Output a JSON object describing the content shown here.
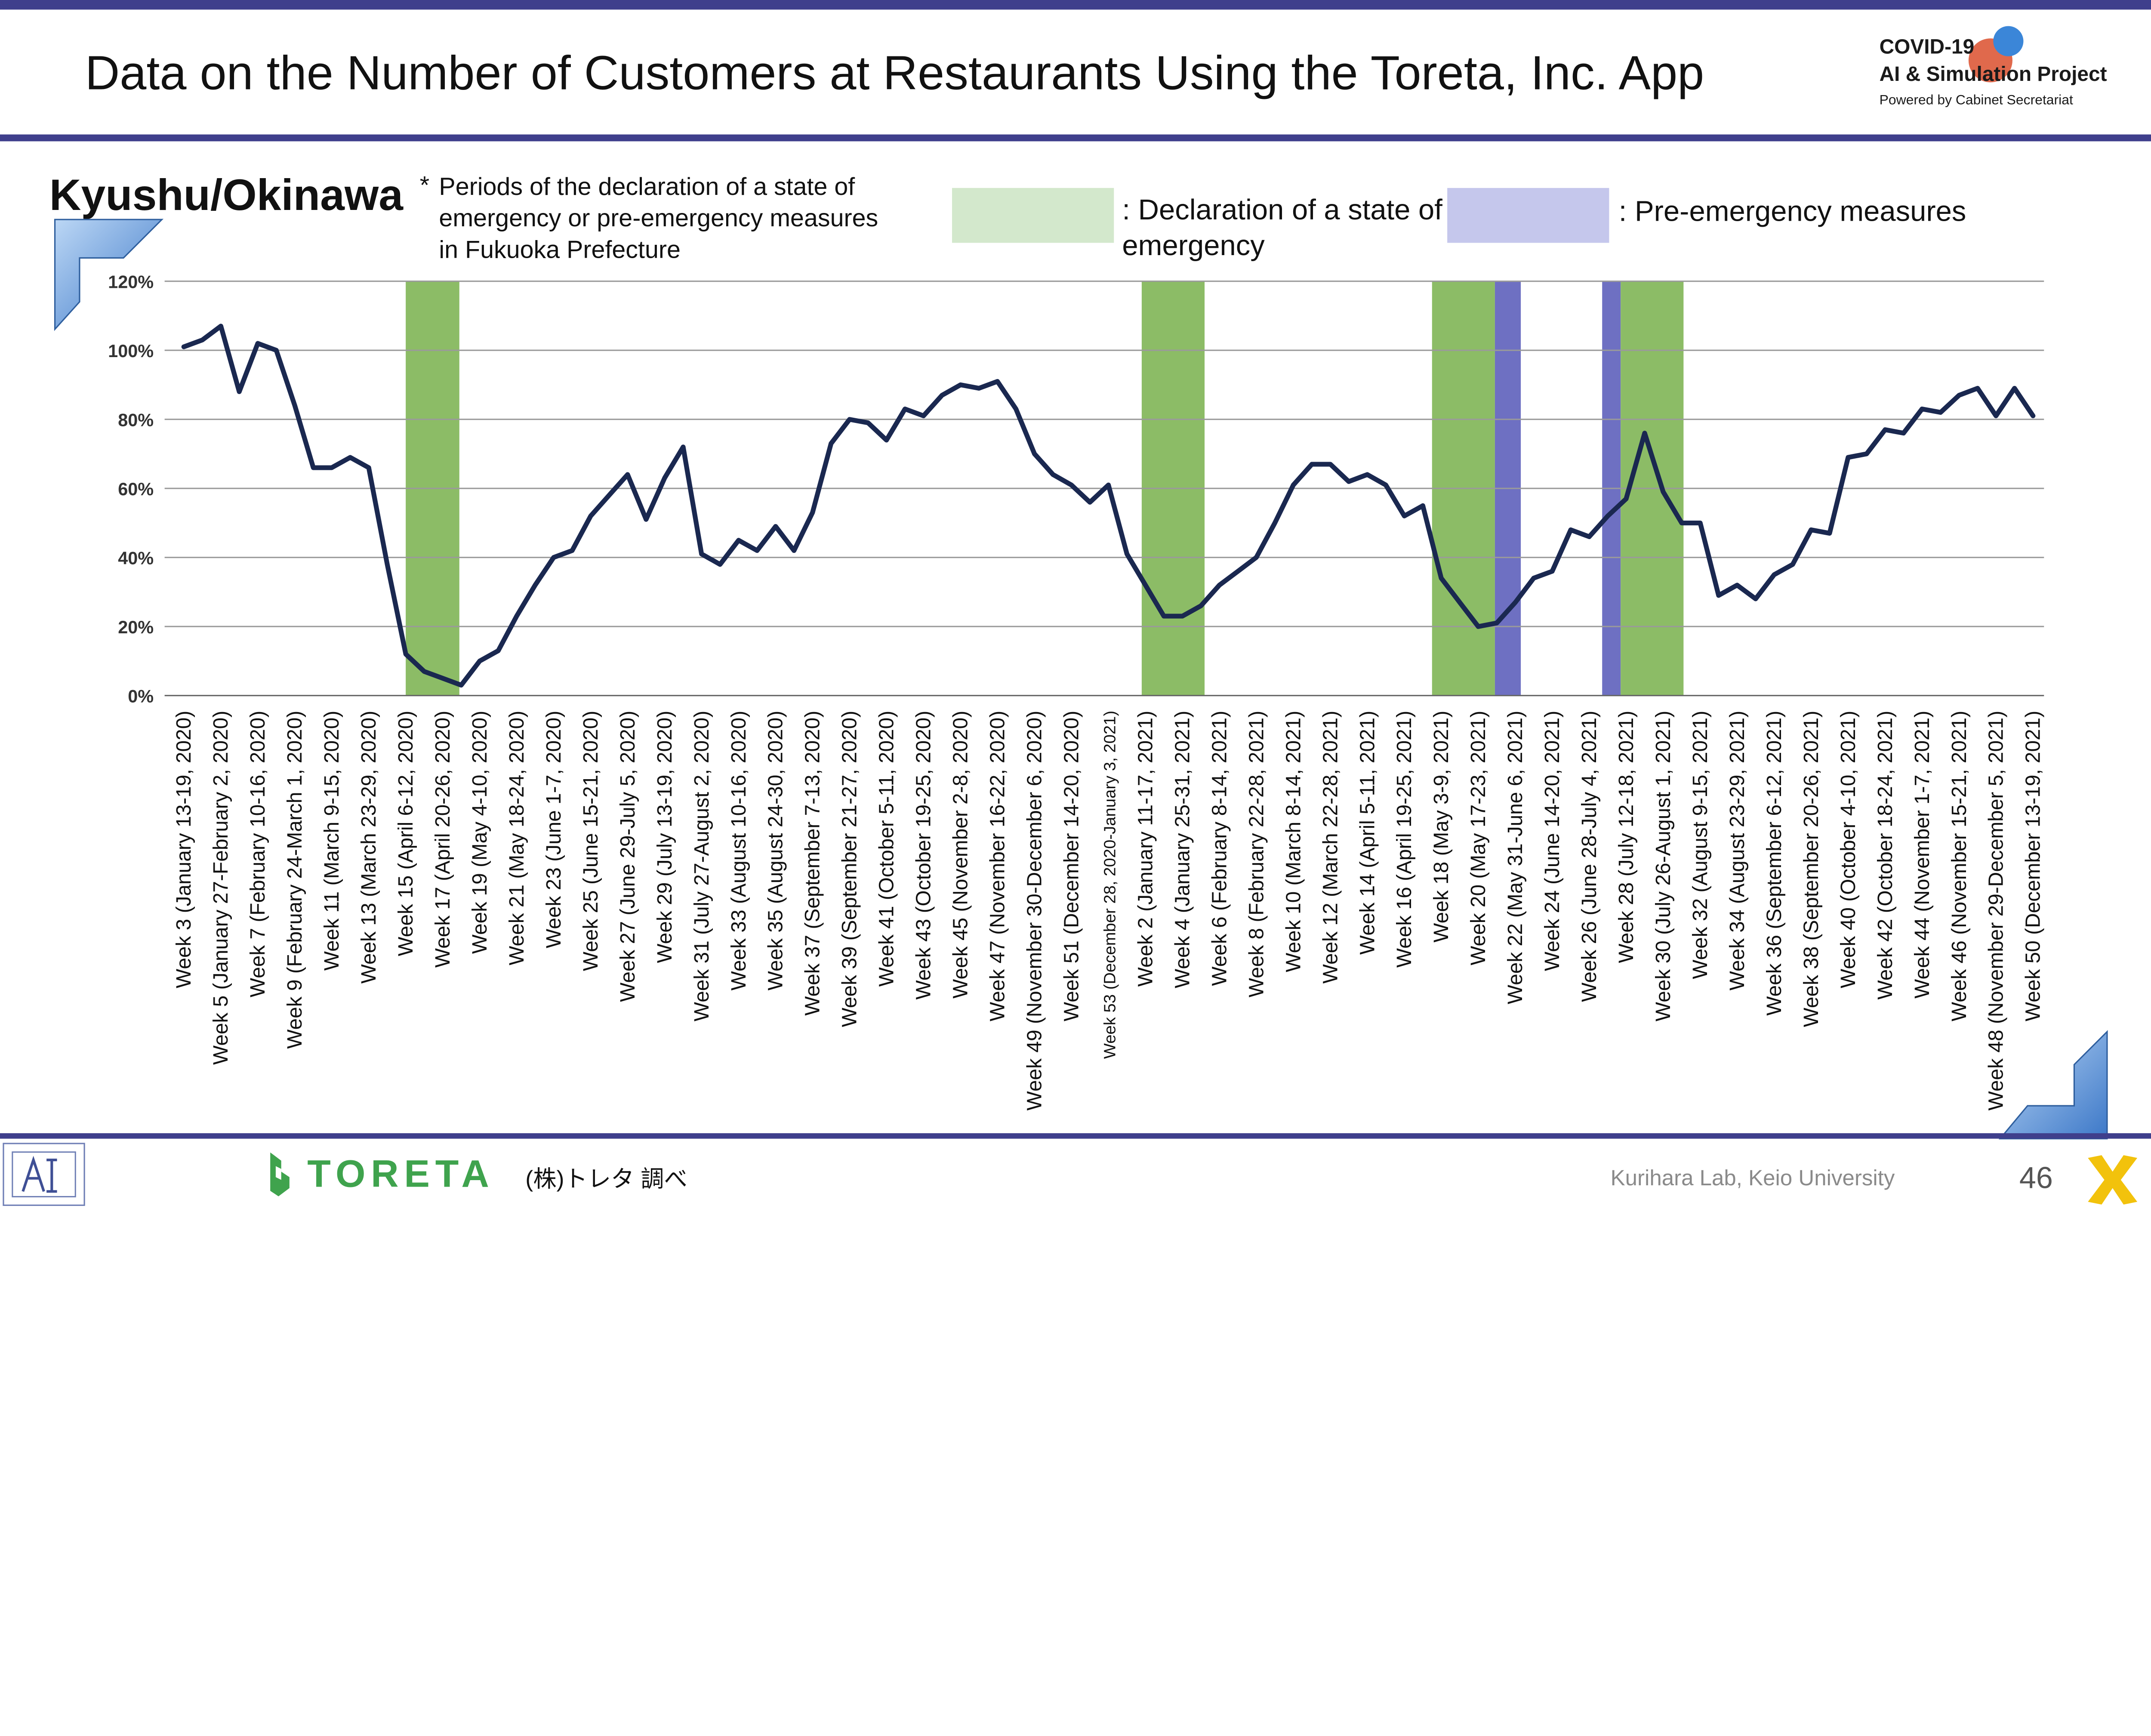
{
  "header": {
    "title": "Data on the Number of Customers at Restaurants Using the Toreta, Inc. App",
    "logo_line1": "COVID-19",
    "logo_line2": "AI & Simulation Project",
    "logo_line3": "Powered by Cabinet Secretariat"
  },
  "region": "Kyushu/Okinawa",
  "note": {
    "star": "*",
    "line1": "Periods of the declaration of a state of",
    "line2": "emergency or pre-emergency measures",
    "line3": "in Fukuoka Prefecture"
  },
  "legend": {
    "emergency_label": ": Declaration of a state of emergency",
    "pre_emergency_label": ": Pre-emergency measures",
    "emergency_color": "#8cbc66",
    "pre_emergency_color": "#6e70c2"
  },
  "footer": {
    "brand": "TORETA",
    "caption": "(株)トレタ 調べ",
    "credit": "Kurihara Lab, Keio University",
    "page_number": "46",
    "brand_color": "#3fa34d"
  },
  "chart_data": {
    "type": "line",
    "y_ticks": [
      "0%",
      "20%",
      "40%",
      "60%",
      "80%",
      "100%",
      "120%"
    ],
    "ylim": [
      0,
      120
    ],
    "grid": true,
    "line_color": "#1a2850",
    "x_tick_labels": [
      "Week 3 (January 13-19, 2020)",
      "Week 5 (January 27-February 2, 2020)",
      "Week 7 (February 10-16, 2020)",
      "Week 9 (February 24-March 1, 2020)",
      "Week 11 (March 9-15, 2020)",
      "Week 13 (March 23-29, 2020)",
      "Week 15 (April 6-12, 2020)",
      "Week 17 (April 20-26, 2020)",
      "Week 19 (May 4-10, 2020)",
      "Week 21 (May 18-24, 2020)",
      "Week 23 (June 1-7, 2020)",
      "Week 25 (June 15-21, 2020)",
      "Week 27 (June 29-July 5, 2020)",
      "Week 29 (July 13-19, 2020)",
      "Week 31 (July 27-August 2, 2020)",
      "Week 33 (August 10-16, 2020)",
      "Week 35 (August 24-30, 2020)",
      "Week 37 (September 7-13, 2020)",
      "Week 39 (September 21-27, 2020)",
      "Week 41 (October 5-11, 2020)",
      "Week 43 (October 19-25, 2020)",
      "Week 45 (November 2-8, 2020)",
      "Week 47 (November 16-22, 2020)",
      "Week 49 (November 30-December 6, 2020)",
      "Week 51 (December 14-20, 2020)",
      "Week 53 (December 28, 2020-January 3, 2021)",
      "Week 2 (January 11-17, 2021)",
      "Week 4 (January 25-31, 2021)",
      "Week 6 (February 8-14, 2021)",
      "Week 8 (February 22-28, 2021)",
      "Week 10 (March 8-14, 2021)",
      "Week 12 (March 22-28, 2021)",
      "Week 14 (April 5-11, 2021)",
      "Week 16 (April 19-25, 2021)",
      "Week 18 (May 3-9, 2021)",
      "Week 20 (May 17-23, 2021)",
      "Week 22 (May 31-June 6, 2021)",
      "Week 24 (June 14-20, 2021)",
      "Week 26 (June 28-July 4, 2021)",
      "Week 28 (July 12-18, 2021)",
      "Week 30 (July 26-August 1, 2021)",
      "Week 32 (August 9-15, 2021)",
      "Week 34 (August 23-29, 2021)",
      "Week 36 (September 6-12, 2021)",
      "Week 38 (September 20-26, 2021)",
      "Week 40 (October 4-10, 2021)",
      "Week 42 (October 18-24, 2021)",
      "Week 44 (November 1-7, 2021)",
      "Week 46 (November 15-21, 2021)",
      "Week 48 (November 29-December 5, 2021)",
      "Week 50 (December 13-19, 2021)"
    ],
    "values": [
      101,
      103,
      107,
      88,
      102,
      100,
      84,
      66,
      66,
      69,
      66,
      38,
      12,
      7,
      5,
      3,
      10,
      13,
      23,
      32,
      40,
      42,
      52,
      58,
      64,
      51,
      63,
      72,
      41,
      38,
      45,
      42,
      49,
      42,
      53,
      73,
      80,
      79,
      74,
      83,
      81,
      87,
      90,
      89,
      91,
      83,
      70,
      64,
      61,
      56,
      61,
      41,
      32,
      23,
      23,
      26,
      32,
      36,
      40,
      50,
      61,
      67,
      67,
      62,
      64,
      61,
      52,
      55,
      34,
      27,
      20,
      21,
      27,
      34,
      36,
      48,
      46,
      52,
      57,
      76,
      59,
      50,
      50,
      29,
      32,
      28,
      35,
      38,
      48,
      47,
      69,
      70,
      77,
      76,
      83,
      82,
      87,
      89,
      81,
      89,
      81
    ],
    "bands": [
      {
        "type": "emergency",
        "start": 12,
        "end": 14.9
      },
      {
        "type": "emergency",
        "start": 51.8,
        "end": 55.2
      },
      {
        "type": "emergency",
        "start": 67.5,
        "end": 70.9
      },
      {
        "type": "pre-emergency",
        "start": 70.9,
        "end": 72.3
      },
      {
        "type": "pre-emergency",
        "start": 76.7,
        "end": 77.7
      },
      {
        "type": "emergency",
        "start": 77.7,
        "end": 81.1
      }
    ]
  }
}
